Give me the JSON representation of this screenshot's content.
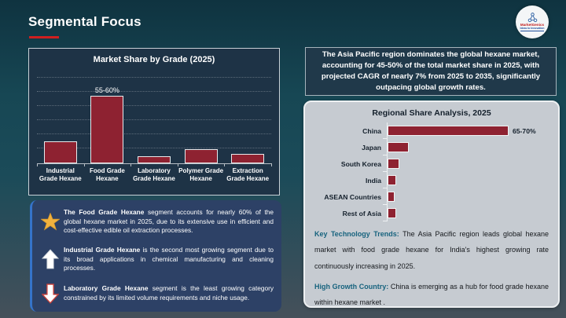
{
  "header": {
    "title": "Segmental Focus",
    "logo": {
      "name": "MarketGenics",
      "tagline": "Ideas to Innovation",
      "icon": "molecule-icon"
    }
  },
  "colors": {
    "accent_red": "#cf1f1f",
    "bar_fill": "#8e2231",
    "callout_bg": "#2d4166",
    "callout_accent": "#3573c9",
    "panel_gray": "#c6cbd1",
    "teal_heading": "#17637e",
    "star_gold": "#f1b23e"
  },
  "chart_data": [
    {
      "type": "bar",
      "orientation": "vertical",
      "title": "Market Share by Grade (2025)",
      "categories": [
        "Industrial Grade Hexane",
        "Food Grade Hexane",
        "Laboratory Grade Hexane",
        "Polymer Grade Hexane",
        "Extraction Grade Hexane"
      ],
      "values": [
        19,
        57.5,
        6,
        12,
        8
      ],
      "bar_labels": [
        "",
        "55-60%",
        "",
        "",
        ""
      ],
      "unit": "%",
      "ylim": [
        0,
        70
      ],
      "grid": "dotted-horizontal",
      "legend": "none"
    },
    {
      "type": "bar",
      "orientation": "horizontal",
      "title": "Regional Share Analysis, 2025",
      "categories": [
        "China",
        "Japan",
        "South Korea",
        "India",
        "ASEAN Countries",
        "Rest of Asia"
      ],
      "values": [
        67.5,
        12,
        6.5,
        5,
        4,
        5
      ],
      "bar_labels": [
        "65-70%",
        "",
        "",
        "",
        "",
        ""
      ],
      "unit": "%",
      "xlim": [
        0,
        75
      ],
      "grid": "off",
      "legend": "none"
    }
  ],
  "callouts": {
    "items": [
      {
        "icon": "star-icon",
        "lead": "The Food Grade Hexane",
        "text": "segment accounts for nearly 60% of the global hexane market in 2025, due to its extensive use in efficient and cost-effective edible oil extraction processes."
      },
      {
        "icon": "up-arrow-icon",
        "lead": "Industrial Grade Hexane",
        "text": "is the second most growing segment due to its broad applications in chemical manufacturing and cleaning processes."
      },
      {
        "icon": "down-arrow-icon",
        "lead": "Laboratory Grade Hexane",
        "text": "segment is the least growing category constrained by its limited volume requirements and niche usage."
      }
    ]
  },
  "right": {
    "summary": "The Asia Pacific region dominates the global hexane market, accounting for 45-50% of the total market share in 2025, with projected CAGR of nearly 7% from 2025 to 2035, significantly outpacing global growth rates.",
    "trends_label": "Key Technology Trends:",
    "trends_text": "The Asia Pacific region leads global hexane market with food grade hexane for India's highest growing rate continuously increasing in 2025.",
    "growth_label": "High Growth Country:",
    "growth_text": "China is emerging as a hub for food grade hexane within hexane market ."
  }
}
